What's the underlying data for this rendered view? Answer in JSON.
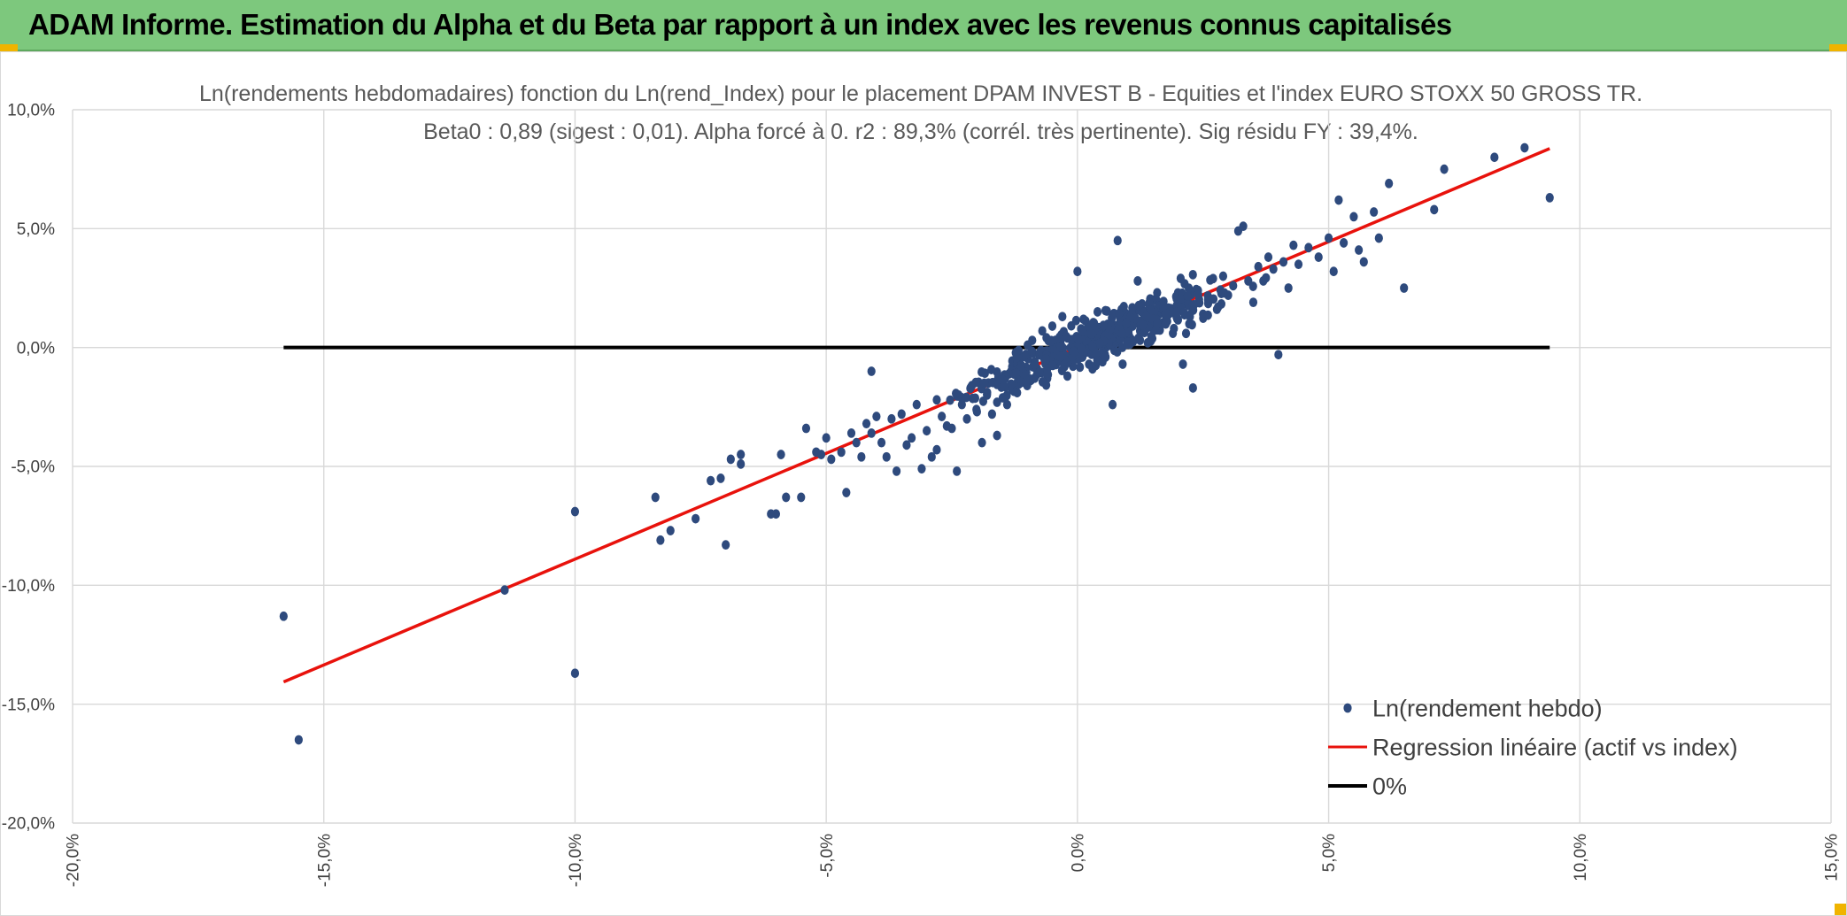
{
  "banner": {
    "title": "ADAM Informe. Estimation du Alpha et du Beta par rapport à un index avec les revenus connus capitalisés",
    "background_color": "#7dc87d",
    "corner_color": "#f0b400"
  },
  "chart_data": {
    "type": "scatter",
    "title_line1": "Ln(rendements hebdomadaires) fonction du Ln(rend_Index) pour le placement DPAM INVEST B - Equities  et l'index EURO STOXX 50 GROSS TR.",
    "title_line2": "Beta0 : 0,89 (sigest : 0,01). Alpha forcé à 0. r2 : 89,3% (corrél. très pertinente). Sig résidu FY : 39,4%.",
    "xlim": [
      -20,
      15
    ],
    "ylim": [
      -20,
      10
    ],
    "x_ticks": [
      {
        "value": -20,
        "label": "-20,0%"
      },
      {
        "value": -15,
        "label": "-15,0%"
      },
      {
        "value": -10,
        "label": "-10,0%"
      },
      {
        "value": -5,
        "label": "-5,0%"
      },
      {
        "value": 0,
        "label": "0,0%"
      },
      {
        "value": 5,
        "label": "5,0%"
      },
      {
        "value": 10,
        "label": "10,0%"
      },
      {
        "value": 15,
        "label": "15,0%"
      }
    ],
    "y_ticks": [
      {
        "value": 10,
        "label": "10,0%"
      },
      {
        "value": 5,
        "label": "5,0%"
      },
      {
        "value": 0,
        "label": "0,0%"
      },
      {
        "value": -5,
        "label": "-5,0%"
      },
      {
        "value": -10,
        "label": "-10,0%"
      },
      {
        "value": -15,
        "label": "-15,0%"
      },
      {
        "value": -20,
        "label": "-20,0%"
      }
    ],
    "grid": true,
    "legend_position": "bottom-right",
    "legend": [
      {
        "label": "Ln(rendement hebdo)",
        "symbol": "marker",
        "color": "#2e4a7d"
      },
      {
        "label": "Regression linéaire (actif vs index)",
        "symbol": "line",
        "color": "#e8120c"
      },
      {
        "label": "0%",
        "symbol": "line",
        "color": "#000000"
      }
    ],
    "series": [
      {
        "name": "Ln(rendement hebdo)",
        "color": "#2e4a7d",
        "points": [
          [
            -15.8,
            -11.3
          ],
          [
            -15.5,
            -16.5
          ],
          [
            -11.4,
            -10.2
          ],
          [
            -10.0,
            -6.9
          ],
          [
            -10.0,
            -13.7
          ],
          [
            -8.4,
            -6.3
          ],
          [
            -8.3,
            -8.1
          ],
          [
            -8.1,
            -7.7
          ],
          [
            -7.6,
            -7.2
          ],
          [
            -7.3,
            -5.6
          ],
          [
            -7.1,
            -5.5
          ],
          [
            -7.0,
            -8.3
          ],
          [
            -6.9,
            -4.7
          ],
          [
            -6.7,
            -4.5
          ],
          [
            -6.7,
            -4.9
          ],
          [
            -6.1,
            -7.0
          ],
          [
            -6.0,
            -7.0
          ],
          [
            -5.9,
            -4.5
          ],
          [
            -5.8,
            -6.3
          ],
          [
            -5.5,
            -6.3
          ],
          [
            -5.4,
            -3.4
          ],
          [
            -5.2,
            -4.4
          ],
          [
            -5.1,
            -4.5
          ],
          [
            -5.0,
            -3.8
          ],
          [
            -4.9,
            -4.7
          ],
          [
            -4.7,
            -4.4
          ],
          [
            -4.6,
            -6.1
          ],
          [
            -4.5,
            -3.6
          ],
          [
            -4.4,
            -4.0
          ],
          [
            -4.3,
            -4.6
          ],
          [
            -4.2,
            -3.2
          ],
          [
            -4.1,
            -3.6
          ],
          [
            -4.1,
            -1.0
          ],
          [
            -4.0,
            -2.9
          ],
          [
            -3.9,
            -4.0
          ],
          [
            -3.8,
            -4.6
          ],
          [
            -3.7,
            -3.0
          ],
          [
            -3.6,
            -5.2
          ],
          [
            -3.5,
            -2.8
          ],
          [
            -3.4,
            -4.1
          ],
          [
            -3.3,
            -3.8
          ],
          [
            -3.2,
            -2.4
          ],
          [
            -3.1,
            -5.1
          ],
          [
            -3.0,
            -3.5
          ],
          [
            -2.9,
            -4.6
          ],
          [
            -2.8,
            -2.2
          ],
          [
            -2.8,
            -4.3
          ],
          [
            -2.7,
            -2.9
          ],
          [
            -2.6,
            -3.3
          ],
          [
            -2.5,
            -3.4
          ],
          [
            -2.4,
            -5.2
          ],
          [
            -2.3,
            -2.4
          ],
          [
            -2.2,
            -3.0
          ],
          [
            -2.1,
            -1.6
          ],
          [
            -2.0,
            -2.7
          ],
          [
            -1.9,
            -4.0
          ],
          [
            -1.8,
            -2.0
          ],
          [
            -1.7,
            -2.8
          ],
          [
            -1.6,
            -3.7
          ],
          [
            -1.5,
            -1.4
          ],
          [
            -1.4,
            -2.4
          ],
          [
            -1.3,
            -0.8
          ],
          [
            -1.2,
            -1.9
          ],
          [
            -1.1,
            -0.4
          ],
          [
            -1.0,
            -1.6
          ],
          [
            -0.9,
            0.3
          ],
          [
            -0.8,
            -0.9
          ],
          [
            -0.7,
            0.7
          ],
          [
            -0.6,
            -1.3
          ],
          [
            -0.5,
            0.9
          ],
          [
            -0.4,
            -0.5
          ],
          [
            -0.3,
            1.3
          ],
          [
            -0.2,
            -1.2
          ],
          [
            -0.1,
            0.2
          ],
          [
            0.0,
            3.2
          ],
          [
            0.1,
            -0.4
          ],
          [
            0.2,
            0.8
          ],
          [
            0.3,
            -0.9
          ],
          [
            0.4,
            1.5
          ],
          [
            0.5,
            -0.6
          ],
          [
            0.6,
            0.7
          ],
          [
            0.7,
            -2.4
          ],
          [
            0.8,
            4.5
          ],
          [
            0.9,
            -0.7
          ],
          [
            1.0,
            1.2
          ],
          [
            1.1,
            0.9
          ],
          [
            1.2,
            2.8
          ],
          [
            1.3,
            1.1
          ],
          [
            1.4,
            0.2
          ],
          [
            1.5,
            2.0
          ],
          [
            1.6,
            0.8
          ],
          [
            1.7,
            1.8
          ],
          [
            1.8,
            1.5
          ],
          [
            1.9,
            0.6
          ],
          [
            2.0,
            2.3
          ],
          [
            2.1,
            -0.7
          ],
          [
            2.2,
            1.9
          ],
          [
            2.3,
            -1.7
          ],
          [
            2.4,
            2.4
          ],
          [
            2.5,
            1.4
          ],
          [
            2.6,
            2.0
          ],
          [
            2.7,
            2.9
          ],
          [
            2.8,
            1.7
          ],
          [
            2.9,
            3.0
          ],
          [
            3.0,
            2.2
          ],
          [
            3.1,
            2.6
          ],
          [
            3.2,
            4.9
          ],
          [
            3.3,
            5.1
          ],
          [
            3.4,
            2.8
          ],
          [
            3.5,
            1.9
          ],
          [
            3.6,
            3.4
          ],
          [
            3.7,
            2.8
          ],
          [
            3.8,
            3.8
          ],
          [
            3.9,
            3.3
          ],
          [
            4.0,
            -0.3
          ],
          [
            4.1,
            3.6
          ],
          [
            4.2,
            2.5
          ],
          [
            4.3,
            4.3
          ],
          [
            4.4,
            3.5
          ],
          [
            4.6,
            4.2
          ],
          [
            4.8,
            3.8
          ],
          [
            5.0,
            4.6
          ],
          [
            5.1,
            3.2
          ],
          [
            5.2,
            6.2
          ],
          [
            5.3,
            4.4
          ],
          [
            5.5,
            5.5
          ],
          [
            5.6,
            4.1
          ],
          [
            5.7,
            3.6
          ],
          [
            5.9,
            5.7
          ],
          [
            6.0,
            4.6
          ],
          [
            6.2,
            6.9
          ],
          [
            6.5,
            2.5
          ],
          [
            7.1,
            5.8
          ],
          [
            7.3,
            7.5
          ],
          [
            8.3,
            8.0
          ],
          [
            8.9,
            8.4
          ],
          [
            9.4,
            6.3
          ]
        ]
      }
    ],
    "cluster_note": "",
    "regression": {
      "name": "Regression linéaire (actif vs index)",
      "beta": 0.89,
      "alpha": 0,
      "x_range": [
        -15.8,
        9.4
      ],
      "color": "#e8120c"
    },
    "zero_line": {
      "name": "0%",
      "y": 0,
      "x_range": [
        -15.8,
        9.4
      ],
      "color": "#000000"
    }
  }
}
